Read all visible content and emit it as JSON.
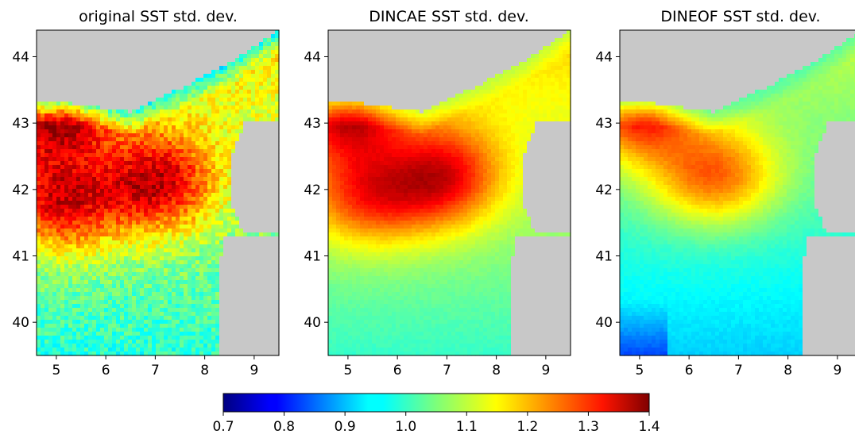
{
  "chart_data": [
    {
      "type": "heatmap",
      "title": "original SST std. dev.",
      "xlim": [
        4.6,
        9.5
      ],
      "ylim": [
        39.5,
        44.4
      ],
      "x_ticks": [
        "5",
        "6",
        "7",
        "8",
        "9"
      ],
      "y_ticks": [
        "40",
        "41",
        "42",
        "43",
        "44"
      ],
      "field": {
        "peak_centers": [
          [
            5.1,
            41.8
          ],
          [
            7.1,
            42.1
          ],
          [
            5.0,
            43.2
          ]
        ],
        "peak_value": 1.32,
        "baseline_value": 1.06,
        "coastal_value": 0.85,
        "noise": "high"
      }
    },
    {
      "type": "heatmap",
      "title": "DINCAE SST std. dev.",
      "xlim": [
        4.6,
        9.5
      ],
      "ylim": [
        39.5,
        44.4
      ],
      "x_ticks": [
        "5",
        "6",
        "7",
        "8",
        "9"
      ],
      "y_ticks": [
        "40",
        "41",
        "42",
        "43",
        "44"
      ],
      "field": {
        "peak_centers": [
          [
            5.5,
            41.9
          ],
          [
            7.0,
            42.2
          ],
          [
            5.0,
            43.2
          ]
        ],
        "peak_value": 1.28,
        "baseline_value": 1.07,
        "coastal_value": 1.05,
        "noise": "low"
      }
    },
    {
      "type": "heatmap",
      "title": "DINEOF SST std. dev.",
      "xlim": [
        4.6,
        9.5
      ],
      "ylim": [
        39.5,
        44.4
      ],
      "x_ticks": [
        "5",
        "6",
        "7",
        "8",
        "9"
      ],
      "y_ticks": [
        "40",
        "41",
        "42",
        "43",
        "44"
      ],
      "field": {
        "peak_centers": [
          [
            6.5,
            42.2
          ],
          [
            5.0,
            43.2
          ]
        ],
        "peak_value": 1.22,
        "baseline_value": 1.0,
        "coastal_value": 0.98,
        "noise": "low"
      }
    }
  ],
  "colorbar": {
    "colormap": "jet",
    "range": [
      0.7,
      1.4
    ],
    "ticks": [
      "0.7",
      "0.8",
      "0.9",
      "1.0",
      "1.1",
      "1.2",
      "1.3",
      "1.4"
    ]
  },
  "land_color": "#c8c8c8"
}
